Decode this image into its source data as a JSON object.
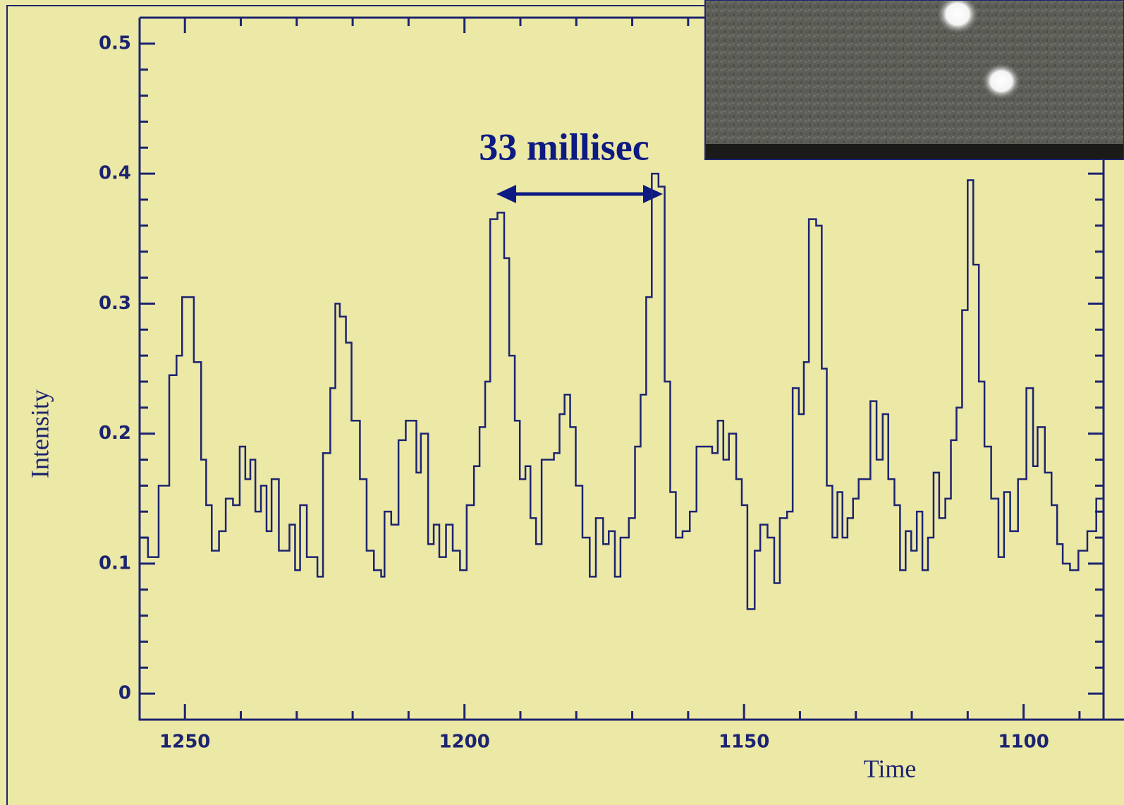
{
  "chart_data": {
    "type": "step",
    "xlabel": "Time",
    "ylabel": "Intensity",
    "annotation": "33 millisec",
    "color": "#1c2470",
    "xlim": [
      1258.1,
      1085.7
    ],
    "ylim": [
      -0.02,
      0.52
    ],
    "xticks": [
      1250,
      1200,
      1150,
      1100
    ],
    "xminor_ticks": [
      1240,
      1230,
      1220,
      1210,
      1190,
      1180,
      1170,
      1160,
      1140,
      1130,
      1120,
      1110,
      1090
    ],
    "yticks": [
      0,
      0.1,
      0.2,
      0.3,
      0.4,
      0.5
    ],
    "yminor_ticks": [
      0.02,
      0.04,
      0.06,
      0.08,
      0.12,
      0.14,
      0.16,
      0.18,
      0.22,
      0.24,
      0.26,
      0.28,
      0.32,
      0.34,
      0.36,
      0.38,
      0.42,
      0.44,
      0.46,
      0.48
    ],
    "x": [
      1257.8,
      1256.6,
      1254.7,
      1252.8,
      1251.5,
      1250.5,
      1248.4,
      1247.1,
      1246.2,
      1245.2,
      1243.9,
      1242.7,
      1241.4,
      1240.2,
      1239.2,
      1238.3,
      1237.4,
      1236.4,
      1235.4,
      1234.5,
      1233.2,
      1231.3,
      1230.3,
      1229.4,
      1228.2,
      1226.3,
      1225.3,
      1224.0,
      1223.1,
      1222.3,
      1221.2,
      1220.2,
      1218.7,
      1217.5,
      1216.2,
      1214.9,
      1214.3,
      1213.1,
      1211.8,
      1210.5,
      1208.6,
      1207.8,
      1206.5,
      1205.5,
      1204.5,
      1203.3,
      1202.1,
      1200.8,
      1199.6,
      1198.3,
      1197.3,
      1196.3,
      1195.4,
      1194.1,
      1192.9,
      1192.0,
      1191.0,
      1190.1,
      1189.1,
      1188.2,
      1187.2,
      1186.2,
      1184.0,
      1183.0,
      1182.1,
      1181.1,
      1180.1,
      1178.9,
      1177.6,
      1176.5,
      1175.2,
      1174.2,
      1173.1,
      1172.1,
      1170.6,
      1169.5,
      1168.5,
      1167.5,
      1166.5,
      1165.3,
      1164.2,
      1163.2,
      1162.2,
      1161.0,
      1159.7,
      1158.5,
      1155.7,
      1154.7,
      1153.7,
      1152.7,
      1151.4,
      1150.4,
      1149.4,
      1148.1,
      1147.1,
      1145.8,
      1144.6,
      1143.6,
      1142.3,
      1141.3,
      1140.2,
      1139.3,
      1138.4,
      1137.1,
      1136.1,
      1135.2,
      1134.2,
      1133.3,
      1132.4,
      1131.5,
      1130.5,
      1129.5,
      1127.4,
      1126.3,
      1125.2,
      1124.2,
      1123.1,
      1122.1,
      1121.1,
      1120.1,
      1119.1,
      1118.1,
      1117.1,
      1116.1,
      1115.1,
      1114.0,
      1113.0,
      1112.0,
      1111.0,
      1110.0,
      1109.0,
      1108.0,
      1107.0,
      1105.8,
      1104.5,
      1103.5,
      1102.4,
      1101.0,
      1099.5,
      1098.3,
      1097.5,
      1096.2,
      1095.0,
      1094.0,
      1093.0,
      1091.7,
      1090.2,
      1088.6,
      1087.0
    ],
    "values": [
      0.12,
      0.105,
      0.16,
      0.245,
      0.26,
      0.305,
      0.255,
      0.18,
      0.145,
      0.11,
      0.125,
      0.15,
      0.145,
      0.19,
      0.165,
      0.18,
      0.14,
      0.16,
      0.125,
      0.165,
      0.11,
      0.13,
      0.095,
      0.145,
      0.105,
      0.09,
      0.185,
      0.235,
      0.3,
      0.29,
      0.27,
      0.21,
      0.165,
      0.11,
      0.095,
      0.09,
      0.14,
      0.13,
      0.195,
      0.21,
      0.17,
      0.2,
      0.115,
      0.13,
      0.105,
      0.13,
      0.11,
      0.095,
      0.145,
      0.175,
      0.205,
      0.24,
      0.365,
      0.37,
      0.335,
      0.26,
      0.21,
      0.165,
      0.175,
      0.135,
      0.115,
      0.18,
      0.185,
      0.215,
      0.23,
      0.205,
      0.16,
      0.12,
      0.09,
      0.135,
      0.115,
      0.125,
      0.09,
      0.12,
      0.135,
      0.19,
      0.23,
      0.305,
      0.4,
      0.39,
      0.24,
      0.155,
      0.12,
      0.125,
      0.14,
      0.19,
      0.185,
      0.21,
      0.18,
      0.2,
      0.165,
      0.145,
      0.065,
      0.11,
      0.13,
      0.12,
      0.085,
      0.135,
      0.14,
      0.235,
      0.215,
      0.255,
      0.365,
      0.36,
      0.25,
      0.16,
      0.12,
      0.155,
      0.12,
      0.135,
      0.15,
      0.165,
      0.225,
      0.18,
      0.215,
      0.165,
      0.145,
      0.095,
      0.125,
      0.11,
      0.14,
      0.095,
      0.12,
      0.17,
      0.135,
      0.15,
      0.195,
      0.22,
      0.295,
      0.395,
      0.33,
      0.24,
      0.19,
      0.15,
      0.105,
      0.155,
      0.125,
      0.165,
      0.235,
      0.175,
      0.205,
      0.17,
      0.145,
      0.115,
      0.1,
      0.095,
      0.11,
      0.125,
      0.15
    ]
  }
}
